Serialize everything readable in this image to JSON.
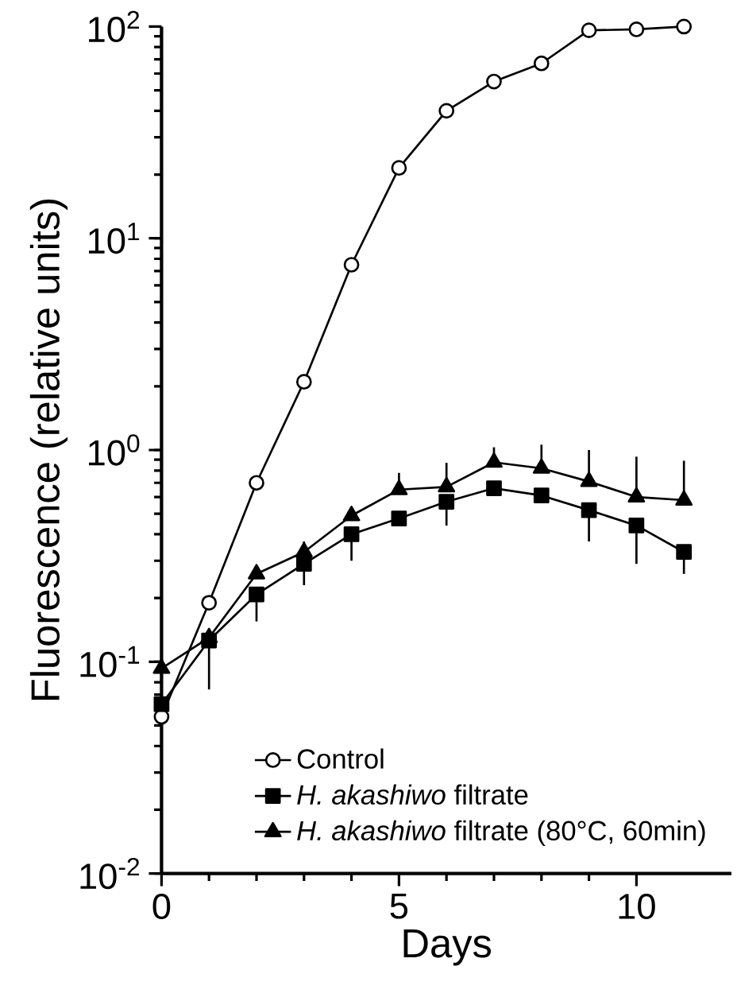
{
  "chart_data": {
    "type": "line",
    "xlabel": "Days",
    "ylabel": "Fluorescence (relative units)",
    "log": "y",
    "xlim": [
      0,
      12
    ],
    "xticks": [
      0,
      5,
      10
    ],
    "ylim": [
      0.01,
      100
    ],
    "yticks": [
      {
        "value": 0.01,
        "label": "10$^{-2}$"
      },
      {
        "value": 0.1,
        "label": "10$^{-1}$"
      },
      {
        "value": 1,
        "label": "10$^{0}$"
      },
      {
        "value": 10,
        "label": "10$^{1}$"
      },
      {
        "value": 100,
        "label": "10$^{2}$"
      }
    ],
    "grid": false,
    "legend": "bottom",
    "line_style": "solid",
    "x": [
      0,
      1,
      2,
      3,
      4,
      5,
      6,
      7,
      8,
      9,
      10,
      11
    ],
    "series": [
      {
        "name": "Control",
        "color": "#000000",
        "marker": "circle",
        "values": [
          0.055,
          0.19,
          0.7,
          2.1,
          7.5,
          21.5,
          40,
          55,
          67,
          96,
          97,
          100
        ]
      },
      {
        "name": "*H. akashiwo* filtrate",
        "color": "#000000",
        "marker": "square",
        "values": [
          0.063,
          0.126,
          0.208,
          0.29,
          0.4,
          0.475,
          0.57,
          0.66,
          0.61,
          0.52,
          0.44,
          0.33
        ],
        "errors": [
          null,
          [
            0.074,
            0.126
          ],
          [
            0.155,
            0.208
          ],
          [
            0.23,
            0.29
          ],
          [
            0.3,
            0.4
          ],
          null,
          [
            0.44,
            0.57
          ],
          null,
          null,
          [
            0.37,
            0.52
          ],
          [
            0.29,
            0.44
          ],
          [
            0.26,
            0.33
          ]
        ]
      },
      {
        "name": "*H. akashiwo* filtrate (80°C, 60min)",
        "color": "#000000",
        "marker": "triangle",
        "values": [
          0.093,
          0.13,
          0.26,
          0.33,
          0.49,
          0.65,
          0.67,
          0.875,
          0.82,
          0.71,
          0.6,
          0.58
        ],
        "errors": [
          null,
          null,
          null,
          [
            0.33,
            0.37
          ],
          [
            0.49,
            0.53
          ],
          [
            0.65,
            0.78
          ],
          [
            0.67,
            0.87
          ],
          [
            0.875,
            1.03
          ],
          [
            0.82,
            1.06
          ],
          [
            0.71,
            1.0
          ],
          [
            0.6,
            0.93
          ],
          [
            0.58,
            0.89
          ]
        ]
      }
    ]
  }
}
